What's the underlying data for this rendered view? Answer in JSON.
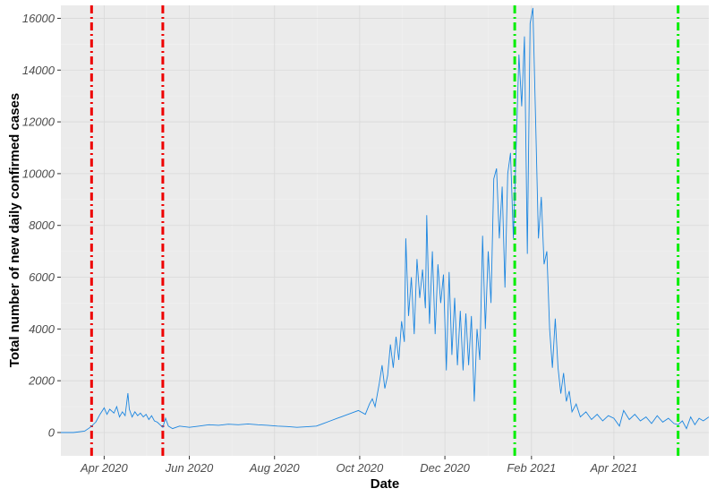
{
  "chart_data": {
    "type": "line",
    "title": "",
    "xlabel": "Date",
    "ylabel": "Total number of new daily confirmed cases",
    "x_range": [
      "2020-03-01",
      "2021-06-08"
    ],
    "ylim": [
      -900,
      16500
    ],
    "grid": true,
    "background": "#ebebeb",
    "gridline_color": "#d9d9d9",
    "line_color": "#1c86e0",
    "x_ticks": [
      {
        "date": "2020-04-01",
        "label": "Apr 2020"
      },
      {
        "date": "2020-06-01",
        "label": "Jun 2020"
      },
      {
        "date": "2020-08-01",
        "label": "Aug 2020"
      },
      {
        "date": "2020-10-01",
        "label": "Oct 2020"
      },
      {
        "date": "2020-12-01",
        "label": "Dec 2020"
      },
      {
        "date": "2021-02-01",
        "label": "Feb 2021"
      },
      {
        "date": "2021-04-01",
        "label": "Apr 2021"
      }
    ],
    "y_ticks": [
      0,
      2000,
      4000,
      6000,
      8000,
      10000,
      12000,
      14000,
      16000
    ],
    "vlines": [
      {
        "date": "2020-03-23",
        "color": "#ee0000"
      },
      {
        "date": "2020-05-13",
        "color": "#ee0000"
      },
      {
        "date": "2021-01-20",
        "color": "#00ee00"
      },
      {
        "date": "2021-05-17",
        "color": "#00ee00"
      }
    ],
    "series": [
      {
        "points": [
          [
            "2020-03-01",
            0
          ],
          [
            "2020-03-10",
            0
          ],
          [
            "2020-03-18",
            50
          ],
          [
            "2020-03-22",
            200
          ],
          [
            "2020-03-26",
            400
          ],
          [
            "2020-03-29",
            700
          ],
          [
            "2020-04-01",
            950
          ],
          [
            "2020-04-03",
            700
          ],
          [
            "2020-04-05",
            900
          ],
          [
            "2020-04-08",
            750
          ],
          [
            "2020-04-10",
            1000
          ],
          [
            "2020-04-12",
            600
          ],
          [
            "2020-04-14",
            800
          ],
          [
            "2020-04-16",
            650
          ],
          [
            "2020-04-18",
            1520
          ],
          [
            "2020-04-19",
            900
          ],
          [
            "2020-04-21",
            600
          ],
          [
            "2020-04-23",
            800
          ],
          [
            "2020-04-25",
            650
          ],
          [
            "2020-04-27",
            750
          ],
          [
            "2020-04-29",
            600
          ],
          [
            "2020-05-01",
            700
          ],
          [
            "2020-05-03",
            500
          ],
          [
            "2020-05-05",
            650
          ],
          [
            "2020-05-07",
            450
          ],
          [
            "2020-05-09",
            400
          ],
          [
            "2020-05-11",
            300
          ],
          [
            "2020-05-13",
            200
          ],
          [
            "2020-05-15",
            550
          ],
          [
            "2020-05-17",
            250
          ],
          [
            "2020-05-20",
            150
          ],
          [
            "2020-05-25",
            250
          ],
          [
            "2020-06-01",
            200
          ],
          [
            "2020-06-08",
            250
          ],
          [
            "2020-06-15",
            300
          ],
          [
            "2020-06-22",
            280
          ],
          [
            "2020-06-29",
            320
          ],
          [
            "2020-07-06",
            300
          ],
          [
            "2020-07-13",
            330
          ],
          [
            "2020-07-20",
            300
          ],
          [
            "2020-07-27",
            280
          ],
          [
            "2020-08-03",
            250
          ],
          [
            "2020-08-10",
            230
          ],
          [
            "2020-08-17",
            200
          ],
          [
            "2020-08-24",
            220
          ],
          [
            "2020-08-31",
            250
          ],
          [
            "2020-09-05",
            350
          ],
          [
            "2020-09-10",
            450
          ],
          [
            "2020-09-15",
            550
          ],
          [
            "2020-09-20",
            650
          ],
          [
            "2020-09-25",
            750
          ],
          [
            "2020-09-30",
            850
          ],
          [
            "2020-10-05",
            700
          ],
          [
            "2020-10-08",
            1100
          ],
          [
            "2020-10-10",
            1300
          ],
          [
            "2020-10-12",
            1000
          ],
          [
            "2020-10-15",
            1900
          ],
          [
            "2020-10-17",
            2600
          ],
          [
            "2020-10-19",
            1700
          ],
          [
            "2020-10-21",
            2200
          ],
          [
            "2020-10-23",
            3400
          ],
          [
            "2020-10-25",
            2500
          ],
          [
            "2020-10-27",
            3700
          ],
          [
            "2020-10-29",
            2800
          ],
          [
            "2020-10-31",
            4300
          ],
          [
            "2020-11-02",
            3500
          ],
          [
            "2020-11-03",
            7500
          ],
          [
            "2020-11-05",
            4500
          ],
          [
            "2020-11-07",
            6000
          ],
          [
            "2020-11-09",
            3800
          ],
          [
            "2020-11-11",
            6700
          ],
          [
            "2020-11-13",
            5200
          ],
          [
            "2020-11-15",
            6300
          ],
          [
            "2020-11-17",
            4800
          ],
          [
            "2020-11-18",
            8400
          ],
          [
            "2020-11-20",
            4200
          ],
          [
            "2020-11-22",
            7000
          ],
          [
            "2020-11-24",
            3800
          ],
          [
            "2020-11-26",
            6500
          ],
          [
            "2020-11-28",
            5000
          ],
          [
            "2020-11-30",
            6100
          ],
          [
            "2020-12-02",
            2400
          ],
          [
            "2020-12-04",
            6200
          ],
          [
            "2020-12-06",
            3000
          ],
          [
            "2020-12-08",
            5200
          ],
          [
            "2020-12-10",
            2600
          ],
          [
            "2020-12-12",
            4700
          ],
          [
            "2020-12-14",
            2400
          ],
          [
            "2020-12-16",
            4600
          ],
          [
            "2020-12-18",
            2600
          ],
          [
            "2020-12-20",
            4500
          ],
          [
            "2020-12-22",
            1200
          ],
          [
            "2020-12-24",
            4000
          ],
          [
            "2020-12-26",
            2800
          ],
          [
            "2020-12-28",
            7600
          ],
          [
            "2020-12-30",
            4000
          ],
          [
            "2021-01-01",
            7000
          ],
          [
            "2021-01-03",
            5000
          ],
          [
            "2021-01-05",
            9800
          ],
          [
            "2021-01-07",
            10200
          ],
          [
            "2021-01-09",
            7500
          ],
          [
            "2021-01-11",
            9500
          ],
          [
            "2021-01-13",
            5600
          ],
          [
            "2021-01-15",
            10000
          ],
          [
            "2021-01-17",
            10800
          ],
          [
            "2021-01-19",
            7500
          ],
          [
            "2021-01-21",
            11000
          ],
          [
            "2021-01-23",
            14600
          ],
          [
            "2021-01-25",
            12600
          ],
          [
            "2021-01-27",
            15300
          ],
          [
            "2021-01-29",
            6900
          ],
          [
            "2021-01-31",
            15800
          ],
          [
            "2021-02-02",
            16400
          ],
          [
            "2021-02-04",
            12000
          ],
          [
            "2021-02-06",
            7500
          ],
          [
            "2021-02-08",
            9100
          ],
          [
            "2021-02-10",
            6500
          ],
          [
            "2021-02-12",
            7000
          ],
          [
            "2021-02-14",
            4000
          ],
          [
            "2021-02-16",
            2500
          ],
          [
            "2021-02-18",
            4400
          ],
          [
            "2021-02-20",
            2500
          ],
          [
            "2021-02-22",
            1500
          ],
          [
            "2021-02-24",
            2300
          ],
          [
            "2021-02-26",
            1200
          ],
          [
            "2021-02-28",
            1600
          ],
          [
            "2021-03-02",
            800
          ],
          [
            "2021-03-05",
            1100
          ],
          [
            "2021-03-08",
            600
          ],
          [
            "2021-03-12",
            800
          ],
          [
            "2021-03-16",
            500
          ],
          [
            "2021-03-20",
            700
          ],
          [
            "2021-03-24",
            450
          ],
          [
            "2021-03-28",
            650
          ],
          [
            "2021-04-01",
            550
          ],
          [
            "2021-04-05",
            250
          ],
          [
            "2021-04-08",
            850
          ],
          [
            "2021-04-12",
            500
          ],
          [
            "2021-04-16",
            700
          ],
          [
            "2021-04-20",
            450
          ],
          [
            "2021-04-24",
            600
          ],
          [
            "2021-04-28",
            350
          ],
          [
            "2021-05-02",
            650
          ],
          [
            "2021-05-06",
            400
          ],
          [
            "2021-05-10",
            550
          ],
          [
            "2021-05-14",
            350
          ],
          [
            "2021-05-17",
            300
          ],
          [
            "2021-05-20",
            450
          ],
          [
            "2021-05-23",
            150
          ],
          [
            "2021-05-26",
            600
          ],
          [
            "2021-05-29",
            300
          ],
          [
            "2021-06-01",
            550
          ],
          [
            "2021-06-04",
            450
          ],
          [
            "2021-06-08",
            600
          ]
        ]
      }
    ]
  }
}
